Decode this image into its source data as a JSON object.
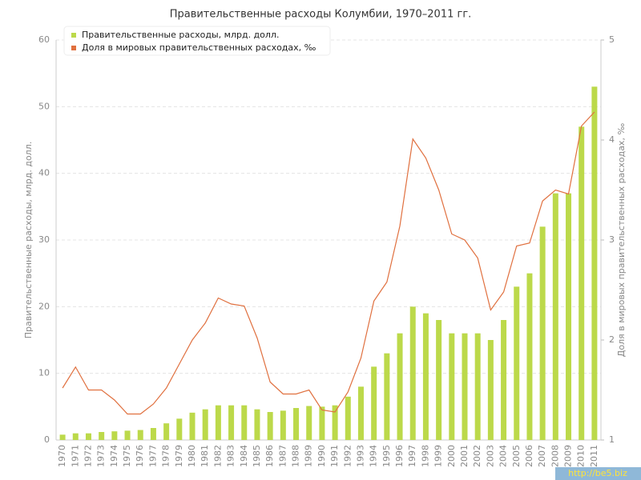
{
  "chart_data": {
    "type": "bar",
    "title": "Правительственные расходы Колумбии, 1970–2011 гг.",
    "y_label": "Правительственные расходы, млрд. долл.",
    "y2_label": "Доля в мировых правительственных расходах, ‰",
    "watermark": "http://be5.biz",
    "categories": [
      "1970",
      "1971",
      "1972",
      "1973",
      "1974",
      "1975",
      "1976",
      "1977",
      "1978",
      "1979",
      "1980",
      "1981",
      "1982",
      "1983",
      "1984",
      "1985",
      "1986",
      "1987",
      "1988",
      "1989",
      "1990",
      "1991",
      "1992",
      "1993",
      "1994",
      "1995",
      "1996",
      "1997",
      "1998",
      "1999",
      "2000",
      "2001",
      "2002",
      "2003",
      "2004",
      "2005",
      "2006",
      "2007",
      "2008",
      "2009",
      "2010",
      "2011"
    ],
    "series": [
      {
        "name": "Правительственные расходы, млрд. долл.",
        "color": "#bcd94a",
        "type": "bar",
        "values": [
          0.8,
          1.0,
          1.0,
          1.2,
          1.3,
          1.4,
          1.5,
          1.8,
          2.5,
          3.2,
          4.1,
          4.6,
          5.2,
          5.2,
          5.2,
          4.6,
          4.2,
          4.4,
          4.8,
          5.1,
          5.0,
          5.2,
          6.5,
          8.0,
          11,
          13,
          16,
          20,
          19,
          18,
          16,
          16,
          16,
          15,
          18,
          23,
          25,
          32,
          37,
          37,
          47,
          53
        ]
      },
      {
        "name": "Доля в мировых правительственных расходах, ‰",
        "color": "#e0703f",
        "type": "line",
        "axis": "y2",
        "values": [
          1.52,
          1.73,
          1.5,
          1.5,
          1.4,
          1.26,
          1.26,
          1.36,
          1.52,
          1.76,
          2.0,
          2.17,
          2.42,
          2.36,
          2.34,
          2.02,
          1.58,
          1.46,
          1.46,
          1.5,
          1.3,
          1.28,
          1.48,
          1.82,
          2.39,
          2.58,
          3.14,
          4.01,
          3.82,
          3.5,
          3.06,
          3.0,
          2.82,
          2.3,
          2.48,
          2.94,
          2.97,
          3.39,
          3.5,
          3.46,
          4.14,
          4.28
        ]
      }
    ],
    "ylim": [
      0,
      60
    ],
    "yticks": [
      0,
      10,
      20,
      30,
      40,
      50,
      60
    ],
    "y2lim": [
      1,
      5
    ],
    "y2ticks": [
      1,
      2,
      3,
      4,
      5
    ],
    "grid": true
  }
}
